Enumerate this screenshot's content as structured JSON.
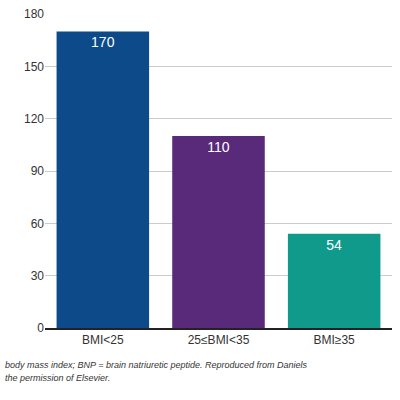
{
  "chart_data": {
    "type": "bar",
    "categories": [
      "BMI<25",
      "25≤BMI<35",
      "BMI≥35"
    ],
    "values": [
      170,
      110,
      54
    ],
    "colors": [
      "#0c4a8a",
      "#5a2a7a",
      "#0f9a8c"
    ],
    "ylim": [
      0,
      180
    ],
    "yticks": [
      0,
      30,
      60,
      90,
      120,
      150,
      180
    ],
    "grid": true,
    "data_labels": true,
    "annotations": [
      "body mass index; BNP = brain natriuretic peptide. Reproduced from Daniels",
      "the permission of Elsevier."
    ]
  }
}
